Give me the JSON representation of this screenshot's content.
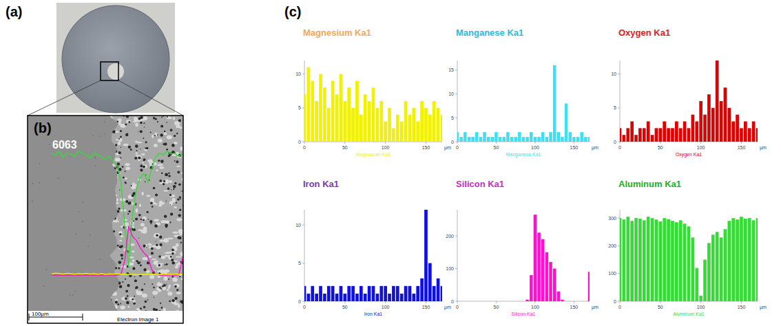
{
  "figure": {
    "panel_labels": [
      "(a)",
      "(b)",
      "(c)"
    ],
    "sem": {
      "alloy": "6063",
      "scale_bar": "100µm",
      "caption": "Electron Image 1"
    }
  },
  "chart_data": [
    {
      "type": "bar",
      "title": "Magnesium Ka1",
      "x_label": "µm",
      "legend": "bottom",
      "x": [
        0,
        5,
        10,
        15,
        20,
        25,
        30,
        35,
        40,
        45,
        50,
        55,
        60,
        65,
        70,
        75,
        80,
        85,
        90,
        95,
        100,
        105,
        110,
        115,
        120,
        125,
        130,
        135,
        140,
        145,
        150,
        155,
        160,
        165,
        170
      ],
      "series": [
        {
          "name": "Magnesium Ka1",
          "color": "#f2f200",
          "values": [
            7,
            11,
            9,
            6,
            10,
            8,
            5,
            9,
            7,
            10,
            6,
            8,
            5,
            9,
            4,
            7,
            6,
            8,
            5,
            6,
            3,
            5,
            2,
            4,
            3,
            6,
            4,
            5,
            3,
            6,
            5,
            4,
            6,
            5,
            4
          ]
        }
      ],
      "xlim": [
        0,
        170
      ],
      "xticks": [
        0,
        50,
        100,
        150
      ],
      "ylim": [
        0,
        12
      ],
      "yticks": [
        0,
        5,
        10
      ]
    },
    {
      "type": "bar",
      "title": "Manganese Ka1",
      "x_label": "µm",
      "legend": "bottom",
      "x": [
        0,
        5,
        10,
        15,
        20,
        25,
        30,
        35,
        40,
        45,
        50,
        55,
        60,
        65,
        70,
        75,
        80,
        85,
        90,
        95,
        100,
        105,
        110,
        115,
        120,
        125,
        130,
        135,
        140,
        145,
        150,
        155,
        160,
        165,
        170
      ],
      "series": [
        {
          "name": "Manganese Ka1",
          "color": "#3ee0ee",
          "values": [
            2,
            1,
            2,
            1,
            1,
            2,
            1,
            2,
            1,
            1,
            2,
            1,
            1,
            2,
            1,
            1,
            2,
            1,
            1,
            2,
            1,
            1,
            2,
            1,
            2,
            16,
            2,
            1,
            8,
            2,
            1,
            1,
            2,
            1,
            1
          ]
        }
      ],
      "xlim": [
        0,
        170
      ],
      "xticks": [
        0,
        50,
        100,
        150
      ],
      "ylim": [
        0,
        17
      ],
      "yticks": [
        0,
        5,
        10,
        15
      ]
    },
    {
      "type": "bar",
      "title": "Oxygen Ka1",
      "x_label": "µm",
      "legend": "bottom",
      "x": [
        0,
        5,
        10,
        15,
        20,
        25,
        30,
        35,
        40,
        45,
        50,
        55,
        60,
        65,
        70,
        75,
        80,
        85,
        90,
        95,
        100,
        105,
        110,
        115,
        120,
        125,
        130,
        135,
        140,
        145,
        150,
        155,
        160,
        165,
        170
      ],
      "series": [
        {
          "name": "Oxygen Ka1",
          "color": "#e00000",
          "values": [
            2,
            1,
            2,
            3,
            1,
            2,
            2,
            3,
            1,
            2,
            2,
            3,
            2,
            2,
            3,
            2,
            3,
            2,
            4,
            3,
            6,
            4,
            7,
            5,
            12,
            6,
            8,
            5,
            3,
            4,
            2,
            3,
            2,
            3,
            2
          ]
        }
      ],
      "xlim": [
        0,
        170
      ],
      "xticks": [
        0,
        50,
        100,
        150
      ],
      "ylim": [
        0,
        12
      ],
      "yticks": [
        0,
        5,
        10
      ]
    },
    {
      "type": "bar",
      "title": "Iron Ka1",
      "x_label": "µm",
      "legend": "bottom",
      "x": [
        0,
        5,
        10,
        15,
        20,
        25,
        30,
        35,
        40,
        45,
        50,
        55,
        60,
        65,
        70,
        75,
        80,
        85,
        90,
        95,
        100,
        105,
        110,
        115,
        120,
        125,
        130,
        135,
        140,
        145,
        150,
        155,
        160,
        165,
        170
      ],
      "series": [
        {
          "name": "Iron Ka1",
          "color": "#1010e0",
          "values": [
            2,
            1,
            2,
            1,
            2,
            1,
            2,
            2,
            1,
            2,
            1,
            2,
            2,
            1,
            2,
            1,
            2,
            2,
            1,
            2,
            2,
            1,
            2,
            2,
            1,
            2,
            2,
            1,
            2,
            3,
            12,
            5,
            2,
            3,
            2
          ]
        }
      ],
      "xlim": [
        0,
        170
      ],
      "xticks": [
        0,
        50,
        100,
        150
      ],
      "ylim": [
        0,
        12
      ],
      "yticks": [
        0,
        5,
        10
      ]
    },
    {
      "type": "bar",
      "title": "Silicon Ka1",
      "x_label": "µm",
      "legend": "bottom",
      "x": [
        0,
        5,
        10,
        15,
        20,
        25,
        30,
        35,
        40,
        45,
        50,
        55,
        60,
        65,
        70,
        75,
        80,
        85,
        90,
        95,
        100,
        105,
        110,
        115,
        120,
        125,
        130,
        135,
        140,
        145,
        150,
        155,
        160,
        165,
        170
      ],
      "series": [
        {
          "name": "Silicon Ka1",
          "color": "#ff10d0",
          "values": [
            0,
            0,
            0,
            0,
            0,
            0,
            0,
            0,
            0,
            0,
            0,
            0,
            0,
            0,
            0,
            0,
            0,
            0,
            5,
            80,
            265,
            210,
            190,
            150,
            120,
            100,
            30,
            5,
            0,
            0,
            0,
            0,
            0,
            0,
            90
          ]
        }
      ],
      "xlim": [
        0,
        170
      ],
      "xticks": [
        0,
        50,
        100,
        150
      ],
      "ylim": [
        0,
        280
      ],
      "yticks": [
        0,
        100,
        200
      ]
    },
    {
      "type": "bar",
      "title": "Aluminum Ka1",
      "x_label": "µm",
      "legend": "bottom",
      "x": [
        0,
        5,
        10,
        15,
        20,
        25,
        30,
        35,
        40,
        45,
        50,
        55,
        60,
        65,
        70,
        75,
        80,
        85,
        90,
        95,
        100,
        105,
        110,
        115,
        120,
        125,
        130,
        135,
        140,
        145,
        150,
        155,
        160,
        165,
        170
      ],
      "series": [
        {
          "name": "Aluminum Ka1",
          "color": "#33dd33",
          "values": [
            300,
            295,
            305,
            290,
            300,
            298,
            292,
            305,
            300,
            295,
            288,
            300,
            296,
            290,
            285,
            292,
            280,
            270,
            230,
            120,
            20,
            150,
            210,
            240,
            250,
            230,
            260,
            290,
            300,
            295,
            305,
            298,
            300,
            292,
            300
          ]
        }
      ],
      "xlim": [
        0,
        170
      ],
      "xticks": [
        0,
        50,
        100,
        150
      ],
      "ylim": [
        0,
        330
      ],
      "yticks": [
        0,
        100,
        200,
        300
      ]
    }
  ]
}
